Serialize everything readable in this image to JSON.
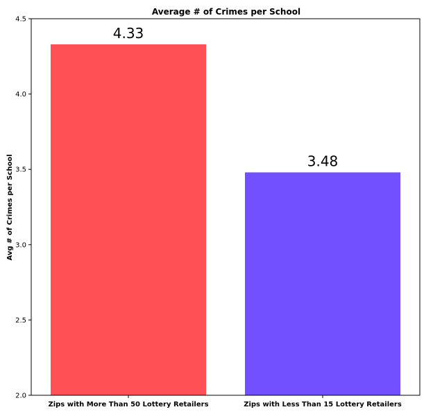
{
  "chart_data": {
    "type": "bar",
    "title": "Average # of Crimes per School",
    "xlabel": "",
    "ylabel": "Avg # of Crimes per School",
    "categories": [
      "Zips with More Than 50 Lottery Retailers",
      "Zips with Less Than 15 Lottery Retailers"
    ],
    "values": [
      4.33,
      3.48
    ],
    "data_labels": [
      "4.33",
      "3.48"
    ],
    "bar_colors": [
      "#ff5055",
      "#7350ff"
    ],
    "ylim": [
      2.0,
      4.5
    ],
    "yticks": [
      2.0,
      2.5,
      3.0,
      3.5,
      4.0,
      4.5
    ],
    "ytick_labels": [
      "2.0",
      "2.5",
      "3.0",
      "3.5",
      "4.0",
      "4.5"
    ],
    "grid": false,
    "legend": "none"
  }
}
